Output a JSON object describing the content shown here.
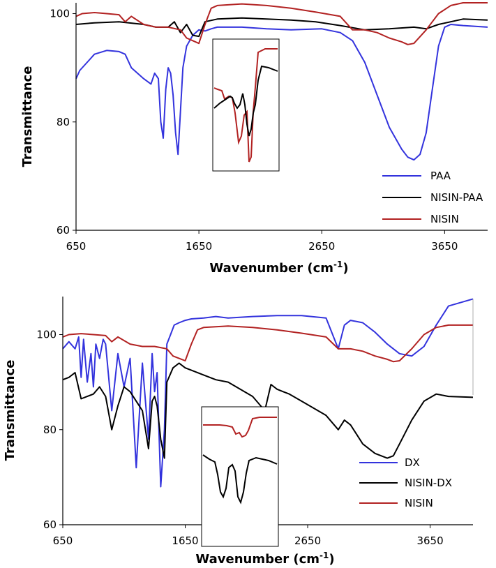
{
  "chart_data": [
    {
      "type": "line",
      "panel": "top",
      "xlabel": "Wavenumber (cm",
      "xlabel_sup": "-1",
      "xlabel_close": ")",
      "ylabel": "Transmittance",
      "xlim": [
        650,
        4000
      ],
      "ylim": [
        60,
        102
      ],
      "xticks": [
        "650",
        "1650",
        "2650",
        "3650"
      ],
      "yticks": [
        "60",
        "80",
        "100"
      ],
      "legend_position": "bottom-right",
      "inset": true,
      "series": [
        {
          "name": "PAA",
          "color": "#3333dd",
          "x": [
            650,
            660,
            680,
            760,
            800,
            900,
            1000,
            1050,
            1100,
            1200,
            1260,
            1290,
            1320,
            1340,
            1360,
            1380,
            1400,
            1420,
            1440,
            1460,
            1480,
            1500,
            1520,
            1550,
            1600,
            1650,
            1700,
            1750,
            1800,
            2000,
            2200,
            2400,
            2650,
            2800,
            2900,
            3000,
            3100,
            3200,
            3300,
            3350,
            3400,
            3450,
            3500,
            3550,
            3600,
            3650,
            3700,
            3800,
            4000
          ],
          "y": [
            88,
            88.5,
            89.5,
            91.5,
            92.5,
            93.2,
            93,
            92.5,
            90,
            88,
            87,
            89,
            88,
            80,
            77,
            86,
            90,
            89,
            85,
            78,
            74,
            82,
            90,
            94,
            96,
            97,
            96.8,
            97.2,
            97.5,
            97.5,
            97.2,
            97,
            97.2,
            96.5,
            95,
            91,
            85,
            79,
            75,
            73.5,
            73,
            74,
            78,
            86,
            94,
            97.5,
            98,
            97.8,
            97.5
          ]
        },
        {
          "name": "NISIN-PAA",
          "color": "#000000",
          "x": [
            650,
            800,
            1000,
            1200,
            1300,
            1400,
            1450,
            1500,
            1550,
            1600,
            1650,
            1700,
            1800,
            2000,
            2200,
            2400,
            2600,
            2800,
            3000,
            3200,
            3400,
            3500,
            3600,
            3800,
            4000
          ],
          "y": [
            98,
            98.3,
            98.5,
            98,
            97.5,
            97.5,
            98.5,
            96.5,
            98,
            96,
            95.8,
            98.5,
            99,
            99.2,
            99,
            98.8,
            98.5,
            97.8,
            97,
            97.2,
            97.5,
            97.2,
            98,
            99,
            98.8
          ]
        },
        {
          "name": "NISIN",
          "color": "#b22222",
          "x": [
            650,
            700,
            800,
            900,
            1000,
            1050,
            1100,
            1200,
            1300,
            1400,
            1500,
            1550,
            1600,
            1650,
            1700,
            1750,
            1800,
            2000,
            2200,
            2400,
            2600,
            2800,
            2900,
            3000,
            3100,
            3200,
            3300,
            3350,
            3400,
            3500,
            3600,
            3700,
            3800,
            4000
          ],
          "y": [
            99.5,
            100,
            100.2,
            100,
            99.8,
            98.5,
            99.5,
            98,
            97.5,
            97.5,
            97,
            95.5,
            95,
            94.5,
            98,
            101,
            101.5,
            101.8,
            101.5,
            101,
            100.3,
            99.5,
            97,
            97,
            96.5,
            95.5,
            94.8,
            94.3,
            94.5,
            97,
            100,
            101.5,
            102,
            102
          ]
        }
      ]
    },
    {
      "type": "line",
      "panel": "bottom",
      "xlabel": "Wavenumber (cm",
      "xlabel_sup": "-1",
      "xlabel_close": ")",
      "ylabel": "Transmittance",
      "xlim": [
        650,
        4000
      ],
      "ylim": [
        60,
        108
      ],
      "xticks": [
        "650",
        "1650",
        "2650",
        "3650"
      ],
      "yticks": [
        "60",
        "80",
        "100"
      ],
      "legend_position": "bottom-right",
      "inset": true,
      "series": [
        {
          "name": "DX",
          "color": "#3333dd",
          "x": [
            650,
            700,
            750,
            780,
            800,
            820,
            850,
            880,
            900,
            920,
            950,
            980,
            1000,
            1050,
            1100,
            1150,
            1200,
            1250,
            1300,
            1350,
            1380,
            1400,
            1420,
            1450,
            1480,
            1500,
            1530,
            1560,
            1600,
            1650,
            1700,
            1800,
            1900,
            2000,
            2200,
            2400,
            2600,
            2800,
            2900,
            2950,
            3000,
            3100,
            3200,
            3300,
            3400,
            3500,
            3600,
            3700,
            3800,
            4000
          ],
          "y": [
            97,
            98.5,
            97,
            99.5,
            91,
            99,
            90,
            96,
            89,
            98,
            95,
            99,
            98,
            84,
            96,
            89,
            95,
            72,
            94,
            78,
            96,
            88,
            92,
            68,
            80,
            98,
            100,
            102,
            102.5,
            103,
            103.3,
            103.5,
            103.8,
            103.5,
            103.8,
            104,
            104,
            103.5,
            97,
            102,
            103,
            102.5,
            100.5,
            98,
            96,
            95.5,
            97.5,
            102,
            106,
            107.5
          ]
        },
        {
          "name": "NISIN-DX",
          "color": "#000000",
          "x": [
            650,
            700,
            750,
            800,
            850,
            900,
            950,
            1000,
            1050,
            1100,
            1150,
            1200,
            1250,
            1300,
            1350,
            1380,
            1400,
            1420,
            1450,
            1480,
            1500,
            1550,
            1600,
            1650,
            1700,
            1800,
            1900,
            2000,
            2200,
            2300,
            2350,
            2400,
            2450,
            2500,
            2600,
            2800,
            2900,
            2950,
            3000,
            3050,
            3100,
            3200,
            3300,
            3350,
            3400,
            3500,
            3600,
            3700,
            3800,
            4000
          ],
          "y": [
            90.5,
            91,
            92,
            86.5,
            87,
            87.5,
            89,
            87,
            80,
            85,
            89,
            88,
            86,
            84,
            76,
            86,
            87,
            85,
            78,
            74,
            90,
            93,
            94,
            93,
            92.5,
            91.5,
            90.5,
            90,
            87,
            84,
            89.5,
            88.5,
            88,
            87.5,
            86,
            83,
            80,
            82,
            81,
            79,
            77,
            75,
            74,
            74.5,
            77,
            82,
            86,
            87.5,
            87,
            86.8
          ]
        },
        {
          "name": "NISIN",
          "color": "#b22222",
          "x": [
            650,
            700,
            800,
            900,
            1000,
            1050,
            1100,
            1200,
            1300,
            1400,
            1500,
            1550,
            1600,
            1650,
            1700,
            1750,
            1800,
            2000,
            2200,
            2400,
            2600,
            2800,
            2900,
            3000,
            3100,
            3200,
            3300,
            3350,
            3400,
            3500,
            3600,
            3700,
            3800,
            4000
          ],
          "y": [
            99.5,
            100,
            100.2,
            100,
            99.8,
            98.5,
            99.5,
            98,
            97.5,
            97.5,
            97,
            95.5,
            95,
            94.5,
            98,
            101,
            101.5,
            101.8,
            101.5,
            101,
            100.3,
            99.5,
            97,
            97,
            96.5,
            95.5,
            94.8,
            94.3,
            94.5,
            97,
            100,
            101.5,
            102,
            102
          ]
        }
      ]
    }
  ]
}
